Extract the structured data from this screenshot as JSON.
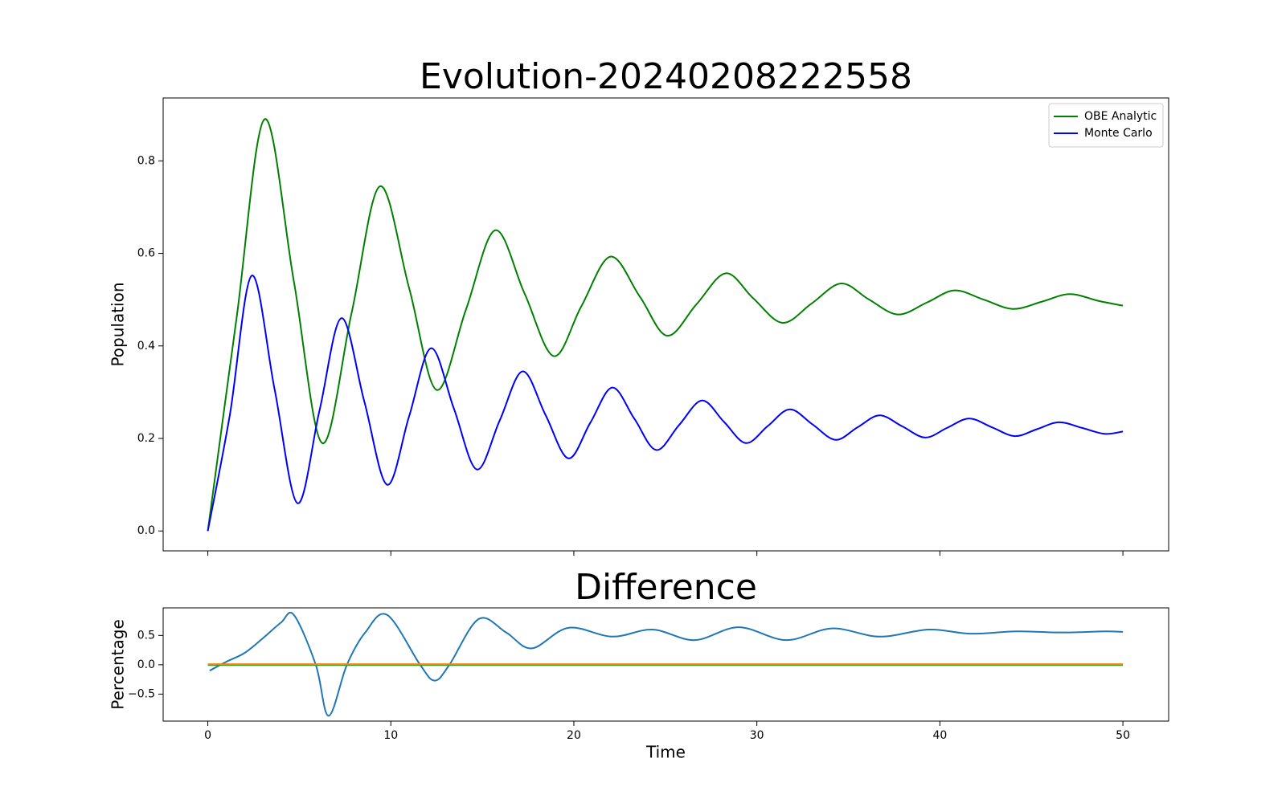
{
  "chart_data": [
    {
      "type": "line",
      "title": "Evolution-20240208222558",
      "ylabel": "Population",
      "xlim": [
        -2.44,
        52.5
      ],
      "xticks": [
        0,
        10,
        20,
        30,
        40,
        50
      ],
      "xtick_labels": false,
      "ylim": [
        -0.043,
        0.936
      ],
      "yticks": [
        {
          "value": 0,
          "label": "0.0"
        },
        0.2,
        0.4,
        0.6,
        0.8
      ],
      "legend": "upper right",
      "series": [
        {
          "name": "OBE Analytic",
          "color": "#008000",
          "x": [
            0,
            1.57,
            3.1,
            4.7,
            6.25,
            7.85,
            9.4,
            11,
            12.5,
            14.1,
            15.7,
            17.3,
            18.9,
            20.4,
            22,
            23.6,
            25.1,
            26.7,
            28.3,
            29.8,
            31.4,
            33,
            34.6,
            36.1,
            37.7,
            39.3,
            40.8,
            42.4,
            44,
            45.6,
            47.1,
            48.7,
            50
          ],
          "values": [
            0,
            0.46,
            0.89,
            0.54,
            0.19,
            0.47,
            0.745,
            0.525,
            0.305,
            0.478,
            0.65,
            0.514,
            0.378,
            0.485,
            0.593,
            0.507,
            0.422,
            0.49,
            0.557,
            0.503,
            0.45,
            0.492,
            0.535,
            0.501,
            0.468,
            0.494,
            0.52,
            0.5,
            0.48,
            0.496,
            0.512,
            0.497,
            0.487
          ]
        },
        {
          "name": "Monte Carlo",
          "color": "#0000ff",
          "x": [
            0,
            1.2,
            2.4,
            3.65,
            4.9,
            6.1,
            7.3,
            8.55,
            9.8,
            11,
            12.2,
            13.45,
            14.7,
            15.95,
            17.2,
            18.45,
            19.7,
            20.9,
            22.1,
            23.3,
            24.5,
            25.75,
            27,
            28.2,
            29.4,
            30.6,
            31.8,
            33.05,
            34.3,
            35.5,
            36.7,
            37.95,
            39.2,
            40.4,
            41.6,
            42.85,
            44.1,
            45.3,
            46.5,
            47.75,
            49,
            50
          ],
          "values": [
            0,
            0.25,
            0.552,
            0.306,
            0.06,
            0.26,
            0.46,
            0.28,
            0.1,
            0.248,
            0.395,
            0.264,
            0.133,
            0.239,
            0.345,
            0.251,
            0.157,
            0.234,
            0.31,
            0.243,
            0.175,
            0.229,
            0.282,
            0.236,
            0.19,
            0.227,
            0.263,
            0.23,
            0.197,
            0.224,
            0.25,
            0.226,
            0.202,
            0.223,
            0.243,
            0.224,
            0.205,
            0.22,
            0.235,
            0.223,
            0.21,
            0.215
          ]
        }
      ]
    },
    {
      "type": "line",
      "title": "Difference",
      "xlabel": "Time",
      "ylabel": "Percentage",
      "xlim": [
        -2.44,
        52.5
      ],
      "xticks": [
        0,
        10,
        20,
        30,
        40,
        50
      ],
      "xtick_labels": true,
      "ylim": [
        -0.96,
        0.97
      ],
      "yticks": [
        {
          "value": -0.5,
          "label": "−0.5"
        },
        {
          "value": 0,
          "label": "0.0"
        },
        0.5
      ],
      "series": [
        {
          "color": "#1f77b4",
          "x": [
            0.1,
            1,
            2,
            3,
            4,
            4.7,
            5.9,
            6.6,
            7.6,
            8.6,
            9.8,
            11.6,
            12.4,
            13.2,
            14.8,
            16.3,
            17.7,
            19.7,
            22.1,
            24.3,
            26.6,
            29,
            31.6,
            34.1,
            36.7,
            39.4,
            41.7,
            44.2,
            46.7,
            49,
            50
          ],
          "values": [
            -0.1,
            0.05,
            0.2,
            0.45,
            0.72,
            0.85,
            0,
            -0.87,
            0,
            0.55,
            0.85,
            0,
            -0.27,
            0,
            0.78,
            0.55,
            0.28,
            0.63,
            0.48,
            0.6,
            0.42,
            0.64,
            0.42,
            0.62,
            0.48,
            0.6,
            0.53,
            0.57,
            0.55,
            0.57,
            0.56
          ]
        },
        {
          "color": "#2ca02c",
          "x": [
            0,
            50
          ],
          "values": [
            -0.005,
            -0.005
          ]
        },
        {
          "color": "#ff7f0e",
          "x": [
            0,
            50
          ],
          "values": [
            0.01,
            0.01
          ]
        }
      ]
    }
  ]
}
